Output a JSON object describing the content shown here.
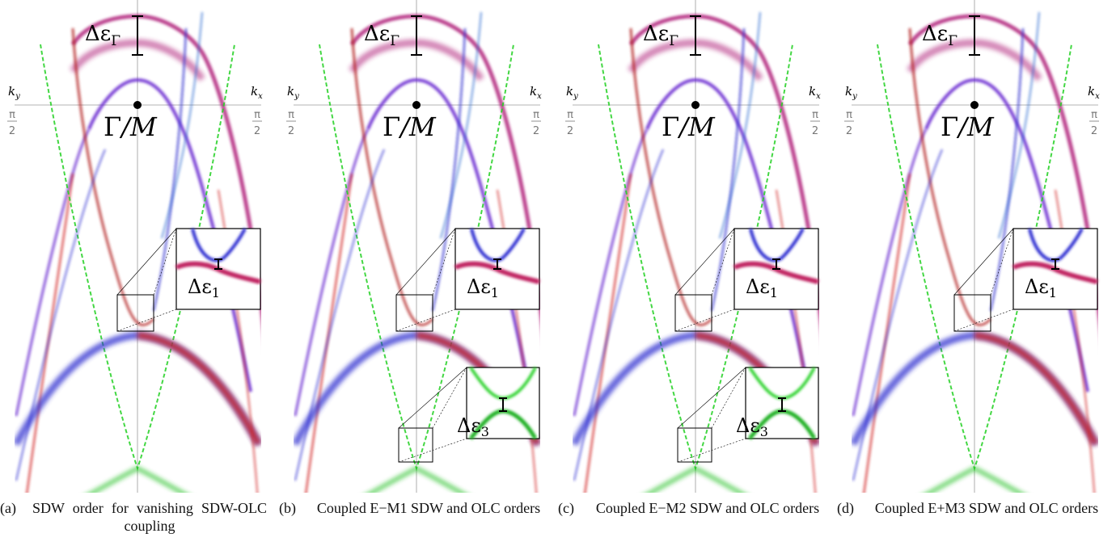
{
  "panels": [
    {
      "id": "a",
      "delta_gamma": "Δε",
      "delta_gamma_sub": "Γ",
      "point_label_1": "Γ",
      "point_label_2": "/M",
      "ky": "k",
      "ky_sub": "y",
      "kx": "k",
      "kx_sub": "x",
      "left_frac_num": "π",
      "left_frac_den": "2",
      "right_frac_num": "π",
      "right_frac_den": "2",
      "inset1_label": "Δε",
      "inset1_sub": "1",
      "inset3_label": "",
      "inset3_sub": "",
      "caption_label": "(a)",
      "caption_text": "SDW order for vanishing SDW-OLC coupling"
    },
    {
      "id": "b",
      "delta_gamma": "Δε",
      "delta_gamma_sub": "Γ",
      "point_label_1": "Γ",
      "point_label_2": "/M",
      "ky": "k",
      "ky_sub": "y",
      "kx": "k",
      "kx_sub": "x",
      "left_frac_num": "π",
      "left_frac_den": "2",
      "right_frac_num": "π",
      "right_frac_den": "2",
      "inset1_label": "Δε",
      "inset1_sub": "1",
      "inset3_label": "Δε",
      "inset3_sub": "3",
      "caption_label": "(b)",
      "caption_text": "Coupled E−M1 SDW and OLC orders"
    },
    {
      "id": "c",
      "delta_gamma": "Δε",
      "delta_gamma_sub": "Γ",
      "point_label_1": "Γ",
      "point_label_2": "/M",
      "ky": "k",
      "ky_sub": "y",
      "kx": "k",
      "kx_sub": "x",
      "left_frac_num": "π",
      "left_frac_den": "2",
      "right_frac_num": "π",
      "right_frac_den": "2",
      "inset1_label": "Δε",
      "inset1_sub": "1",
      "inset3_label": "Δε",
      "inset3_sub": "3",
      "caption_label": "(c)",
      "caption_text": "Coupled E−M2 SDW and OLC orders"
    },
    {
      "id": "d",
      "delta_gamma": "Δε",
      "delta_gamma_sub": "Γ",
      "point_label_1": "Γ",
      "point_label_2": "/M",
      "ky": "k",
      "ky_sub": "y",
      "kx": "k",
      "kx_sub": "x",
      "left_frac_num": "π",
      "left_frac_den": "2",
      "right_frac_num": "π",
      "right_frac_den": "2",
      "inset1_label": "Δε",
      "inset1_sub": "1",
      "inset3_label": "",
      "inset3_sub": "",
      "caption_label": "(d)",
      "caption_text": "Coupled E+M3 SDW and OLC orders"
    }
  ],
  "colors": {
    "red": "#e0202a",
    "blue": "#2a2ad8",
    "purple": "#8a2ab0",
    "green": "#22d022",
    "axis": "#9a9a9a"
  }
}
